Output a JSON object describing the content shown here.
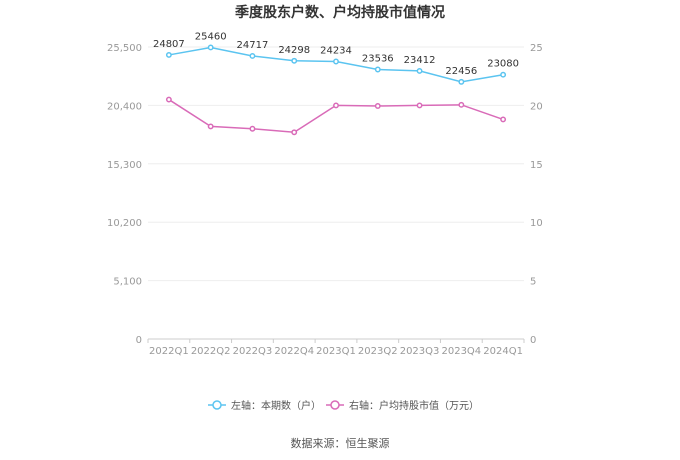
{
  "chart_data": {
    "type": "line",
    "title": "季度股东户数、户均持股市值情况",
    "categories": [
      "2022Q1",
      "2022Q2",
      "2022Q3",
      "2022Q4",
      "2023Q1",
      "2023Q2",
      "2023Q3",
      "2023Q4",
      "2024Q1"
    ],
    "left_axis": {
      "ylim": [
        0,
        25500
      ],
      "ticks": [
        "0",
        "5,100",
        "10,200",
        "15,300",
        "20,400",
        "25,500"
      ],
      "tick_values": [
        0,
        5100,
        10200,
        15300,
        20400,
        25500
      ]
    },
    "right_axis": {
      "ylim": [
        0,
        25
      ],
      "ticks": [
        "0",
        "5",
        "10",
        "15",
        "20",
        "25"
      ],
      "tick_values": [
        0,
        5,
        10,
        15,
        20,
        25
      ]
    },
    "series": [
      {
        "name": "左轴：本期数（户）",
        "axis": "left",
        "color": "#5bc4f0",
        "values": [
          24807,
          25460,
          24717,
          24298,
          24234,
          23536,
          23412,
          22456,
          23080
        ],
        "labels": [
          "24807",
          "25460",
          "24717",
          "24298",
          "24234",
          "23536",
          "23412",
          "22456",
          "23080"
        ]
      },
      {
        "name": "右轴：户均持股市值（万元）",
        "axis": "right",
        "color": "#d96bb8",
        "values": [
          20.5,
          18.2,
          18.0,
          17.7,
          20.0,
          19.95,
          20.0,
          20.05,
          18.8
        ]
      }
    ],
    "legend_position": "bottom",
    "grid": true
  },
  "footer": {
    "source": "数据来源：恒生聚源"
  }
}
